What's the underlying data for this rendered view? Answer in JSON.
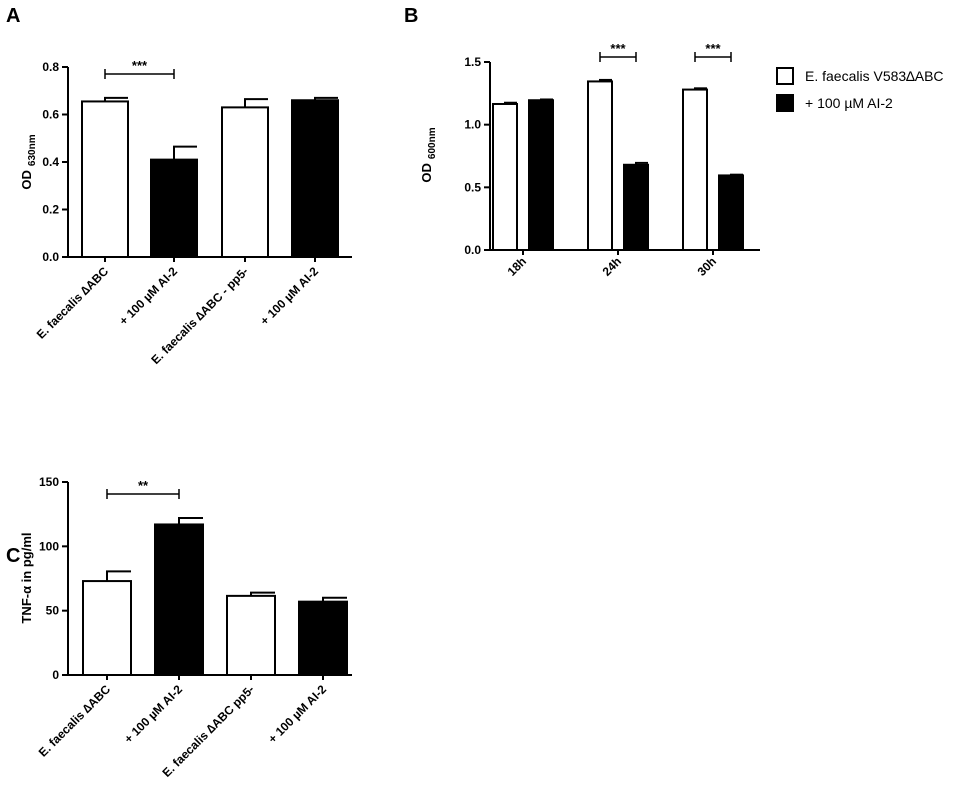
{
  "chart_data": [
    {
      "type": "bar",
      "panel": "A",
      "ylabel": "OD",
      "ylabel_sub": "630nm",
      "ylim": [
        0,
        0.8
      ],
      "yticks": [
        "0.0",
        "0.2",
        "0.4",
        "0.6",
        "0.8"
      ],
      "categories": [
        "E. faecalis ∆ABC",
        "+ 100 µM AI-2",
        "E. faecalis ∆ABC - pp5-",
        "+ 100 µM AI-2"
      ],
      "values": [
        0.655,
        0.41,
        0.63,
        0.66
      ],
      "errors": [
        0.015,
        0.055,
        0.035,
        0.01
      ],
      "fills": [
        "#ffffff",
        "#000000",
        "#ffffff",
        "#000000"
      ],
      "significance": [
        {
          "from": 0,
          "to": 1,
          "label": "***"
        }
      ]
    },
    {
      "type": "bar",
      "panel": "B",
      "ylabel": "OD",
      "ylabel_sub": "600nm",
      "ylim": [
        0,
        1.5
      ],
      "yticks": [
        "0.0",
        "0.5",
        "1.0",
        "1.5"
      ],
      "categories": [
        "18h",
        "24h",
        "30h"
      ],
      "series": [
        {
          "name": "E. faecalis V583∆ABC",
          "fill": "#ffffff",
          "values": [
            1.165,
            1.345,
            1.28
          ],
          "errors": [
            0.01,
            0.012,
            0.01
          ]
        },
        {
          "name": "+ 100 µM AI-2",
          "fill": "#000000",
          "values": [
            1.195,
            0.68,
            0.595
          ],
          "errors": [
            0.006,
            0.015,
            0.006
          ]
        }
      ],
      "significance": [
        {
          "group": 1,
          "label": "***"
        },
        {
          "group": 2,
          "label": "***"
        }
      ],
      "legend_position": "top-right"
    },
    {
      "type": "bar",
      "panel": "C",
      "ylabel": "TNF-α in pg/ml",
      "ylim": [
        0,
        150
      ],
      "yticks": [
        "0",
        "50",
        "100",
        "150"
      ],
      "categories": [
        "E. faecalis ∆ABC",
        "+ 100 µM AI-2",
        "E. faecalis ∆ABC  pp5-",
        "+ 100 µM AI-2"
      ],
      "values": [
        73,
        117,
        61.5,
        57
      ],
      "errors": [
        7.5,
        5,
        2.5,
        3
      ],
      "fills": [
        "#ffffff",
        "#000000",
        "#ffffff",
        "#000000"
      ],
      "significance": [
        {
          "from": 0,
          "to": 1,
          "label": "**"
        }
      ]
    }
  ]
}
